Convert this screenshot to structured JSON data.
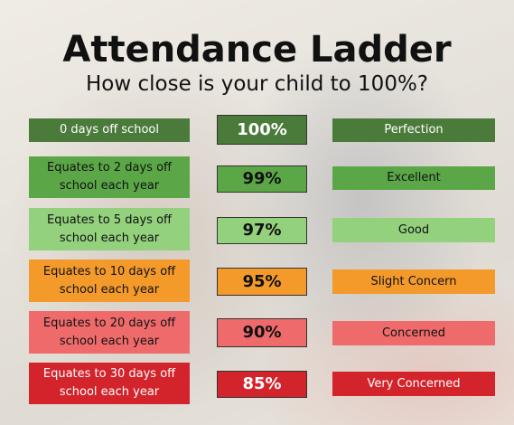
{
  "header": {
    "title": "Attendance Ladder",
    "subtitle": "How close is your child to 100%?"
  },
  "rows": [
    {
      "description": "0 days off school",
      "percentage": "100%",
      "rating": "Perfection"
    },
    {
      "description": "Equates to 2 days off school each year",
      "percentage": "99%",
      "rating": "Excellent"
    },
    {
      "description": "Equates to 5 days off school each year",
      "percentage": "97%",
      "rating": "Good"
    },
    {
      "description": "Equates to 10 days off school each year",
      "percentage": "95%",
      "rating": "Slight Concern"
    },
    {
      "description": "Equates to 20 days off school each year",
      "percentage": "90%",
      "rating": "Concerned"
    },
    {
      "description": "Equates to 30 days off school each year",
      "percentage": "85%",
      "rating": "Very Concerned"
    }
  ]
}
